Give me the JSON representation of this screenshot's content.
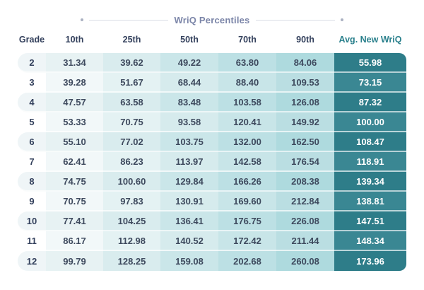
{
  "title": "WriQ Percentiles",
  "colors": {
    "accent_dark_teal": "#2e7d89",
    "accent_dark_teal_alt": "#3a8793",
    "avg_header_text": "#2a808c",
    "header_text": "#33405c",
    "value_text": "#3e4a5e",
    "title_text": "#7b85a8",
    "rule_line": "#d9dde6",
    "rule_dot": "#aab1c2",
    "column_tints_dark_rows": [
      "#eff5f7",
      "#e7f2f3",
      "#d9ecee",
      "#cae6e9",
      "#bce0e4",
      "#aedade",
      "#2e7d89"
    ],
    "column_tints_light_rows": [
      "#ffffff",
      "#f2f8f9",
      "#e4f2f3",
      "#d6ebed",
      "#c8e5e8",
      "#badee2",
      "#3a8793"
    ]
  },
  "chart_data": {
    "type": "table",
    "title": "WriQ Percentiles",
    "columns": [
      "Grade",
      "10th",
      "25th",
      "50th",
      "70th",
      "90th",
      "Avg. New WriQ"
    ],
    "rows": [
      [
        2,
        31.34,
        39.62,
        49.22,
        63.8,
        84.06,
        55.98
      ],
      [
        3,
        39.28,
        51.67,
        68.44,
        88.4,
        109.53,
        73.15
      ],
      [
        4,
        47.57,
        63.58,
        83.48,
        103.58,
        126.08,
        87.32
      ],
      [
        5,
        53.33,
        70.75,
        93.58,
        120.41,
        149.92,
        100.0
      ],
      [
        6,
        55.1,
        77.02,
        103.75,
        132.0,
        162.5,
        108.47
      ],
      [
        7,
        62.41,
        86.23,
        113.97,
        142.58,
        176.54,
        118.91
      ],
      [
        8,
        74.75,
        100.6,
        129.84,
        166.26,
        208.38,
        139.34
      ],
      [
        9,
        70.75,
        97.83,
        130.91,
        169.6,
        212.84,
        138.81
      ],
      [
        10,
        77.41,
        104.25,
        136.41,
        176.75,
        226.08,
        147.51
      ],
      [
        11,
        86.17,
        112.98,
        140.52,
        172.42,
        211.44,
        148.34
      ],
      [
        12,
        99.79,
        128.25,
        159.08,
        202.68,
        260.08,
        173.96
      ]
    ]
  }
}
